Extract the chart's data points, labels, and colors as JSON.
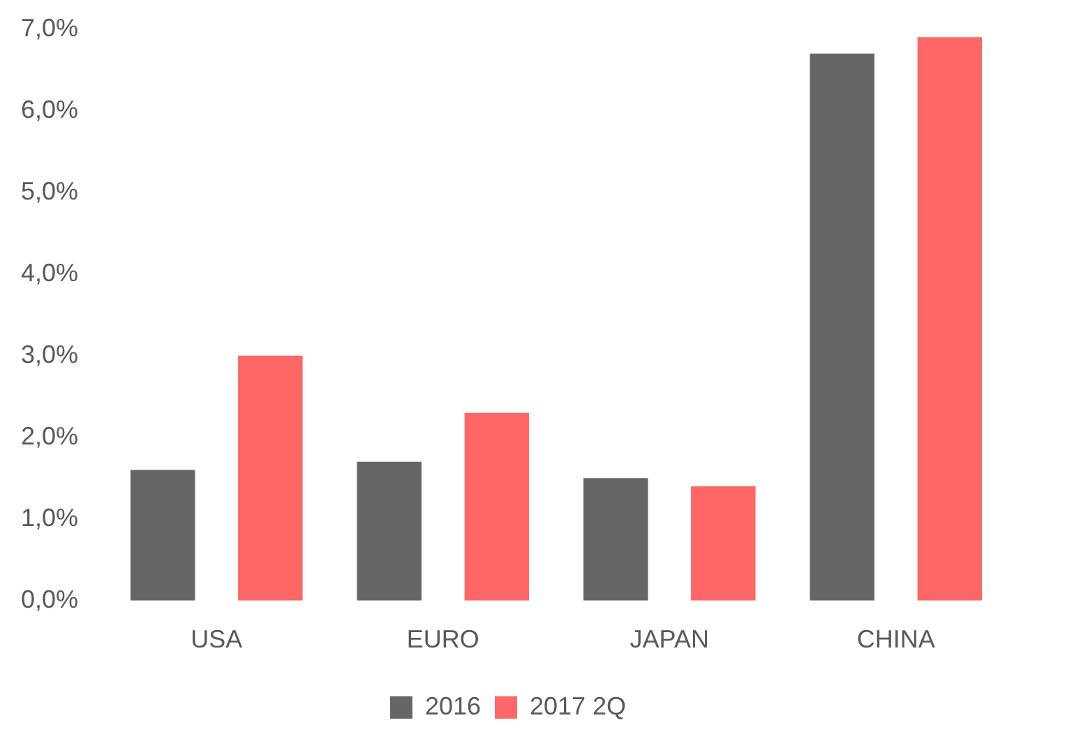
{
  "chart_data": {
    "type": "bar",
    "categories": [
      "USA",
      "EURO",
      "JAPAN",
      "CHINA"
    ],
    "series": [
      {
        "name": "2016",
        "color": "#666666",
        "values": [
          1.6,
          1.7,
          1.5,
          6.7
        ]
      },
      {
        "name": "2017 2Q",
        "color": "#ff6666",
        "values": [
          3.0,
          2.3,
          1.4,
          6.9
        ]
      }
    ],
    "ylim": [
      0,
      7
    ],
    "yticks": [
      {
        "value": 0,
        "label": "0,0%"
      },
      {
        "value": 1,
        "label": "1,0%"
      },
      {
        "value": 2,
        "label": "2,0%"
      },
      {
        "value": 3,
        "label": "3,0%"
      },
      {
        "value": 4,
        "label": "4,0%"
      },
      {
        "value": 5,
        "label": "5,0%"
      },
      {
        "value": 6,
        "label": "6,0%"
      },
      {
        "value": 7,
        "label": "7,0%"
      }
    ],
    "grid": false,
    "legend": "bottom"
  }
}
